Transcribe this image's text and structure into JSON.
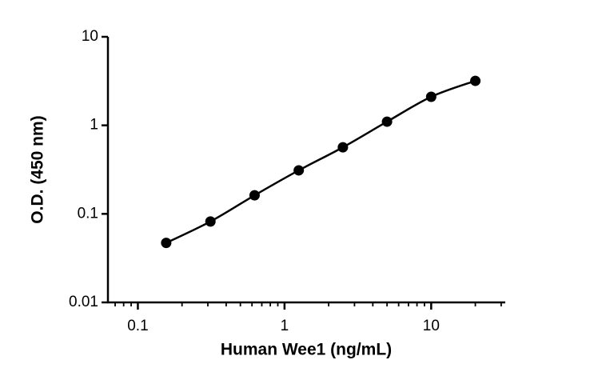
{
  "chart_data": {
    "type": "scatter",
    "x_label": "Human Wee1 (ng/mL)",
    "y_label": "O.D. (450 nm)",
    "x": [
      0.156,
      0.3125,
      0.625,
      1.25,
      2.5,
      5,
      10,
      20
    ],
    "series": [
      {
        "color": "#000000",
        "values": [
          0.047,
          0.082,
          0.162,
          0.31,
          0.565,
          1.1,
          2.1,
          3.18
        ]
      }
    ],
    "xlim": [
      0.0625,
      32
    ],
    "ylim": [
      0.01,
      10
    ],
    "xticks": [
      0.1,
      1,
      10
    ],
    "yticks": [
      0.01,
      0.1,
      1,
      10
    ],
    "xscale": "log",
    "yscale": "log",
    "x_minor_ticks": true,
    "fit_curve": true
  }
}
